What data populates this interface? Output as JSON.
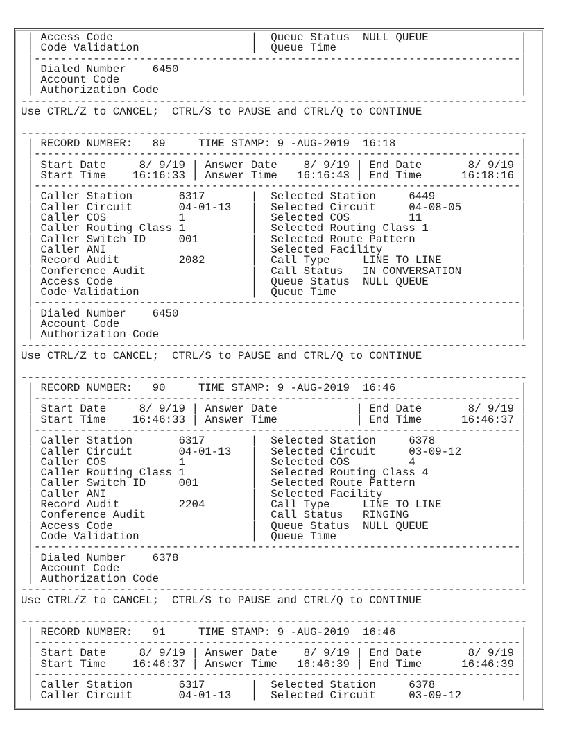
{
  "terminal": {
    "prompt_line": "Use CTRL/Z to CANCEL;  CTRL/S to PAUSE and CTRL/Q to CONTINUE",
    "labels": {
      "record_number_prefix": "RECORD NUMBER:",
      "time_stamp_prefix": "TIME STAMP:"
    },
    "top_partial_record": {
      "field_rows": [
        {
          "left_label": "Access Code",
          "left_value": "",
          "right_label": "Queue Status",
          "right_value": "NULL QUEUE",
          "value_col": "narrow"
        },
        {
          "left_label": "Code Validation",
          "left_value": "",
          "right_label": "Queue Time",
          "right_value": "",
          "value_col": "narrow"
        }
      ],
      "tail_rows": [
        {
          "label": "Dialed Number",
          "value": "6450"
        },
        {
          "label": "Account Code",
          "value": ""
        },
        {
          "label": "Authorization Code",
          "value": ""
        }
      ]
    },
    "records": [
      {
        "number": "89",
        "time_stamp": "9 -AUG-2019  16:18",
        "date_row": [
          {
            "label": "Start Date",
            "value": "8/ 9/19"
          },
          {
            "label": "Answer Date",
            "value": "8/ 9/19"
          },
          {
            "label": "End Date",
            "value": "8/ 9/19"
          }
        ],
        "time_row": [
          {
            "label": "Start Time",
            "value": "16:16:33"
          },
          {
            "label": "Answer Time",
            "value": "16:16:43"
          },
          {
            "label": "End Time",
            "value": "16:18:16"
          }
        ],
        "field_rows": [
          {
            "left_label": "Caller Station",
            "left_value": "6317",
            "right_label": "Selected Station",
            "right_value": "6449",
            "value_col": "wide"
          },
          {
            "left_label": "Caller Circuit",
            "left_value": "04-01-13",
            "right_label": "Selected Circuit",
            "right_value": "04-08-05",
            "value_col": "wide"
          },
          {
            "left_label": "Caller COS",
            "left_value": "1",
            "right_label": "Selected COS",
            "right_value": "11",
            "value_col": "wide"
          },
          {
            "left_label": "Caller Routing Class",
            "left_value": "1",
            "right_label": "Selected Routing Class",
            "right_value": "1",
            "value_col": "wide"
          },
          {
            "left_label": "Caller Switch ID",
            "left_value": "001",
            "right_label": "Selected Route Pattern",
            "right_value": "",
            "value_col": "wide"
          },
          {
            "left_label": "Caller ANI",
            "left_value": "",
            "right_label": "Selected Facility",
            "right_value": "",
            "value_col": "wide"
          },
          {
            "left_label": "Record Audit",
            "left_value": "2082",
            "right_label": "Call Type",
            "right_value": "LINE TO LINE",
            "value_col": "narrow"
          },
          {
            "left_label": "Conference Audit",
            "left_value": "",
            "right_label": "Call Status",
            "right_value": "IN CONVERSATION",
            "value_col": "narrow"
          },
          {
            "left_label": "Access Code",
            "left_value": "",
            "right_label": "Queue Status",
            "right_value": "NULL QUEUE",
            "value_col": "narrow"
          },
          {
            "left_label": "Code Validation",
            "left_value": "",
            "right_label": "Queue Time",
            "right_value": "",
            "value_col": "narrow"
          }
        ],
        "tail_rows": [
          {
            "label": "Dialed Number",
            "value": "6450"
          },
          {
            "label": "Account Code",
            "value": ""
          },
          {
            "label": "Authorization Code",
            "value": ""
          }
        ],
        "truncated": false
      },
      {
        "number": "90",
        "time_stamp": "9 -AUG-2019  16:46",
        "date_row": [
          {
            "label": "Start Date",
            "value": "8/ 9/19"
          },
          {
            "label": "Answer Date",
            "value": ""
          },
          {
            "label": "End Date",
            "value": "8/ 9/19"
          }
        ],
        "time_row": [
          {
            "label": "Start Time",
            "value": "16:46:33"
          },
          {
            "label": "Answer Time",
            "value": ""
          },
          {
            "label": "End Time",
            "value": "16:46:37"
          }
        ],
        "field_rows": [
          {
            "left_label": "Caller Station",
            "left_value": "6317",
            "right_label": "Selected Station",
            "right_value": "6378",
            "value_col": "wide"
          },
          {
            "left_label": "Caller Circuit",
            "left_value": "04-01-13",
            "right_label": "Selected Circuit",
            "right_value": "03-09-12",
            "value_col": "wide"
          },
          {
            "left_label": "Caller COS",
            "left_value": "1",
            "right_label": "Selected COS",
            "right_value": "4",
            "value_col": "wide"
          },
          {
            "left_label": "Caller Routing Class",
            "left_value": "1",
            "right_label": "Selected Routing Class",
            "right_value": "4",
            "value_col": "wide"
          },
          {
            "left_label": "Caller Switch ID",
            "left_value": "001",
            "right_label": "Selected Route Pattern",
            "right_value": "",
            "value_col": "wide"
          },
          {
            "left_label": "Caller ANI",
            "left_value": "",
            "right_label": "Selected Facility",
            "right_value": "",
            "value_col": "wide"
          },
          {
            "left_label": "Record Audit",
            "left_value": "2204",
            "right_label": "Call Type",
            "right_value": "LINE TO LINE",
            "value_col": "narrow"
          },
          {
            "left_label": "Conference Audit",
            "left_value": "",
            "right_label": "Call Status",
            "right_value": "RINGING",
            "value_col": "narrow"
          },
          {
            "left_label": "Access Code",
            "left_value": "",
            "right_label": "Queue Status",
            "right_value": "NULL QUEUE",
            "value_col": "narrow"
          },
          {
            "left_label": "Code Validation",
            "left_value": "",
            "right_label": "Queue Time",
            "right_value": "",
            "value_col": "narrow"
          }
        ],
        "tail_rows": [
          {
            "label": "Dialed Number",
            "value": "6378"
          },
          {
            "label": "Account Code",
            "value": ""
          },
          {
            "label": "Authorization Code",
            "value": ""
          }
        ],
        "truncated": false
      },
      {
        "number": "91",
        "time_stamp": "9 -AUG-2019  16:46",
        "date_row": [
          {
            "label": "Start Date",
            "value": "8/ 9/19"
          },
          {
            "label": "Answer Date",
            "value": "8/ 9/19"
          },
          {
            "label": "End Date",
            "value": "8/ 9/19"
          }
        ],
        "time_row": [
          {
            "label": "Start Time",
            "value": "16:46:37"
          },
          {
            "label": "Answer Time",
            "value": "16:46:39"
          },
          {
            "label": "End Time",
            "value": "16:46:39"
          }
        ],
        "field_rows": [
          {
            "left_label": "Caller Station",
            "left_value": "6317",
            "right_label": "Selected Station",
            "right_value": "6378",
            "value_col": "wide"
          },
          {
            "left_label": "Caller Circuit",
            "left_value": "04-01-13",
            "right_label": "Selected Circuit",
            "right_value": "03-09-12",
            "value_col": "wide"
          }
        ],
        "tail_rows": [],
        "truncated": true
      }
    ]
  }
}
